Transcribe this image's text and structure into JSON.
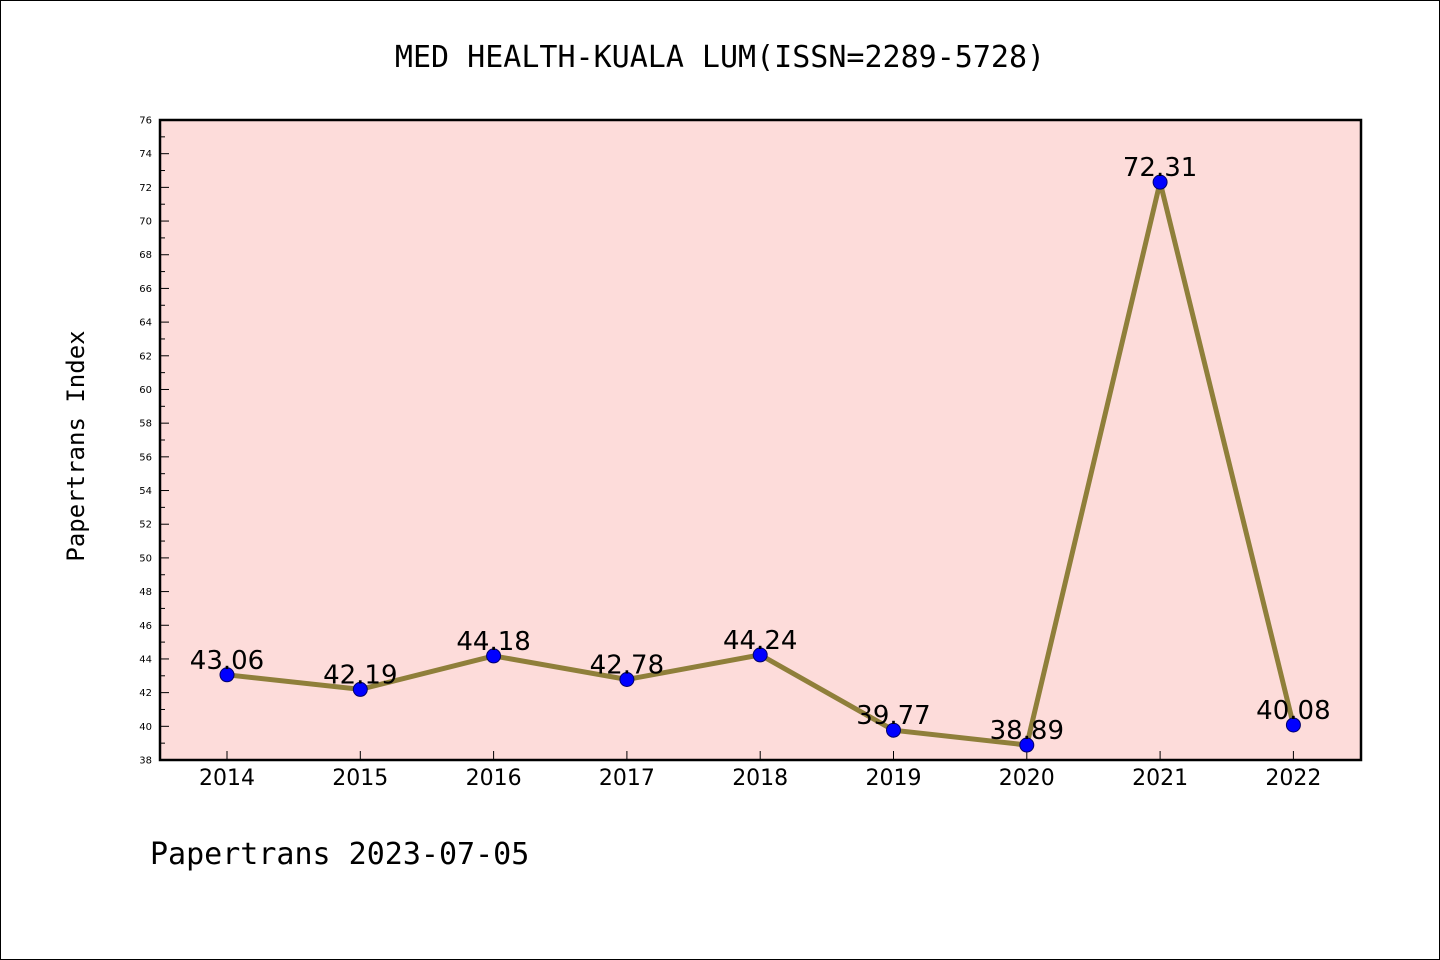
{
  "chart_data": {
    "type": "line",
    "title": "MED HEALTH-KUALA LUM(ISSN=2289-5728)",
    "xlabel": "",
    "ylabel": "Papertrans Index",
    "categories": [
      "2014",
      "2015",
      "2016",
      "2017",
      "2018",
      "2019",
      "2020",
      "2021",
      "2022"
    ],
    "values": [
      43.06,
      42.19,
      44.18,
      42.78,
      44.24,
      39.77,
      38.89,
      72.31,
      40.08
    ],
    "data_labels": [
      "43.06",
      "42.19",
      "44.18",
      "42.78",
      "44.24",
      "39.77",
      "38.89",
      "72.31",
      "40.08"
    ],
    "ylim": [
      38,
      76
    ],
    "yticks": [
      38,
      40,
      42,
      44,
      46,
      48,
      50,
      52,
      54,
      56,
      58,
      60,
      62,
      64,
      66,
      68,
      70,
      72,
      74,
      76
    ],
    "grid": false,
    "legend": "none",
    "colors": {
      "plot_background": "#fddcda",
      "line": "#8f7f3a",
      "marker_fill": "#0000ff",
      "marker_edge": "#00006a",
      "axis": "#000000"
    }
  },
  "footer": "Papertrans 2023-07-05"
}
